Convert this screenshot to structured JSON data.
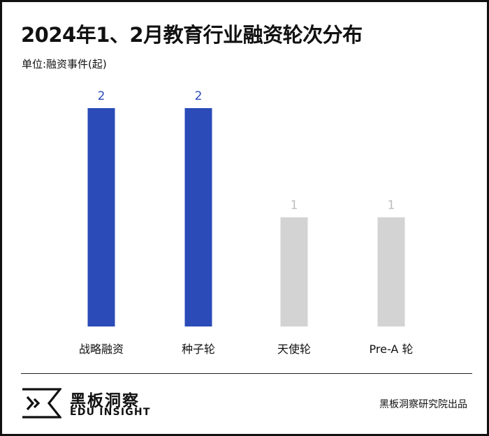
{
  "title": "2024年1、2月教育行业融资轮次分布",
  "unit_label": "单位:融资事件(起)",
  "chart_data": {
    "type": "bar",
    "categories": [
      "战略融资",
      "种子轮",
      "天使轮",
      "Pre-A 轮"
    ],
    "values": [
      2,
      2,
      1,
      1
    ],
    "data_labels": [
      "2",
      "2",
      "1",
      "1"
    ],
    "colors": [
      "#2a4bb8",
      "#2a4bb8",
      "#d3d3d3",
      "#d3d3d3"
    ],
    "label_colors": [
      "#2a4bb8",
      "#2a4bb8",
      "#bdbdbd",
      "#bdbdbd"
    ],
    "ylim": [
      0,
      2
    ],
    "grid": false,
    "legend": "none"
  },
  "footer": {
    "brand_cn": "黑板洞察",
    "brand_en": "EDU INSIGHT",
    "logo_icon": "edu-insight-logo-icon",
    "source": "黑板洞察研究院出品"
  }
}
